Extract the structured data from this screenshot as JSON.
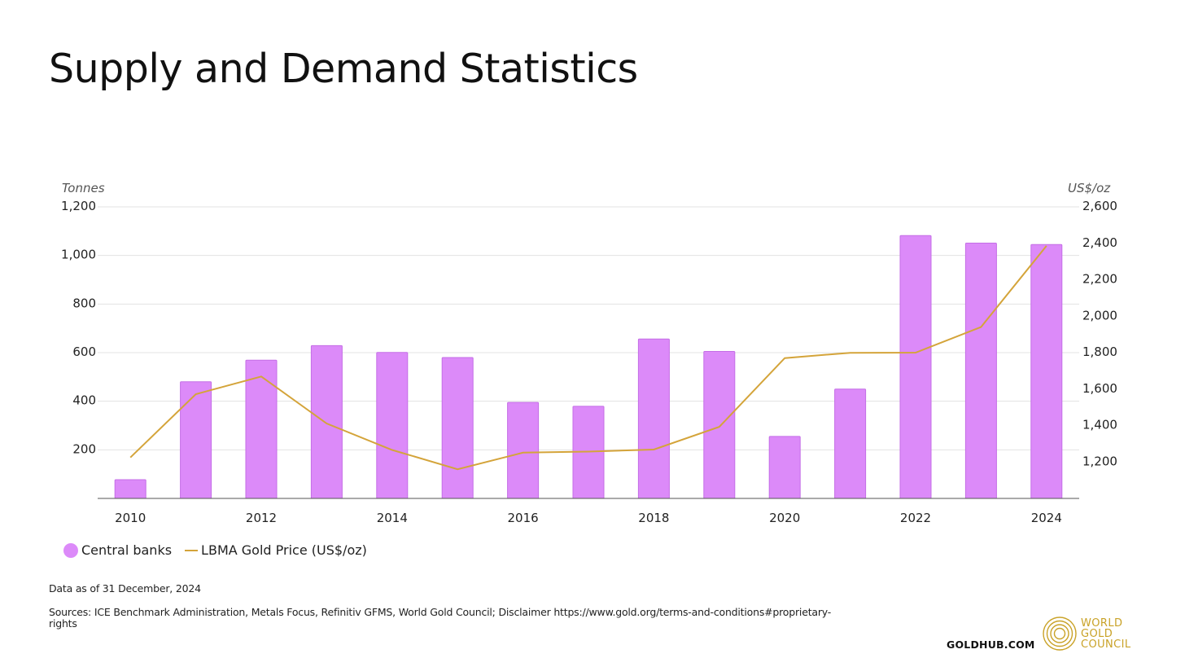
{
  "page": {
    "title": "Supply and Demand Statistics",
    "note_date": "Data as of 31 December, 2024",
    "note_sources": "Sources: ICE Benchmark Administration, Metals Focus, Refinitiv GFMS, World Gold Council; Disclaimer https://www.gold.org/terms-and-conditions#proprietary-rights",
    "site": "GOLDHUB.COM",
    "logo": {
      "icon": "world-gold-council-rings-logo",
      "lines": [
        "WORLD",
        "GOLD",
        "COUNCIL"
      ],
      "color": "#c9a227"
    }
  },
  "chart_data": {
    "type": "bar",
    "title": "",
    "years": [
      2010,
      2011,
      2012,
      2013,
      2014,
      2015,
      2016,
      2017,
      2018,
      2019,
      2020,
      2021,
      2022,
      2023,
      2024
    ],
    "x_tick_labels": [
      "2010",
      "2012",
      "2014",
      "2016",
      "2018",
      "2020",
      "2022",
      "2024"
    ],
    "y_left": {
      "label": "Tonnes",
      "ylim": [
        0,
        1200
      ],
      "ticks": [
        200,
        400,
        600,
        800,
        1000,
        1200
      ],
      "tick_labels": [
        "200",
        "400",
        "600",
        "800",
        "1,000",
        "1,200"
      ]
    },
    "y_right": {
      "label": "US$/oz",
      "ylim": [
        1000,
        2600
      ],
      "ticks": [
        1200,
        1400,
        1600,
        1800,
        2000,
        2200,
        2400,
        2600
      ],
      "tick_labels": [
        "1,200",
        "1,400",
        "1,600",
        "1,800",
        "2,000",
        "2,200",
        "2,400",
        "2,600"
      ]
    },
    "grid": true,
    "legend_position": "bottom-left",
    "series": [
      {
        "name": "Central banks",
        "kind": "bar",
        "axis": "left",
        "color": "#dc8af9",
        "edge_color": "#c46ee6",
        "values": [
          77,
          480,
          569,
          629,
          601,
          580,
          395,
          379,
          656,
          605,
          255,
          450,
          1082,
          1051,
          1045
        ]
      },
      {
        "name": "LBMA Gold Price (US$/oz)",
        "kind": "line",
        "axis": "right",
        "color": "#d4a43a",
        "values": [
          1225,
          1572,
          1669,
          1411,
          1266,
          1160,
          1251,
          1257,
          1268,
          1393,
          1770,
          1799,
          1800,
          1941,
          2386
        ]
      }
    ]
  }
}
